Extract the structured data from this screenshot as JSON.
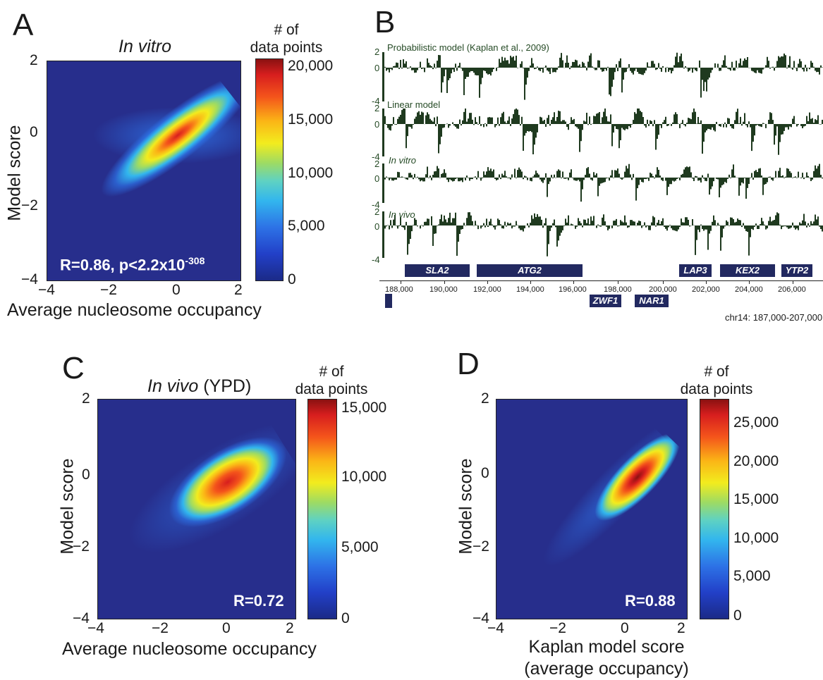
{
  "colors": {
    "heat_background": "#272e8c",
    "track_fill": "#1f3a1f",
    "gene_box": "#222960"
  },
  "panel_a": {
    "letter": "A",
    "title": "In vitro",
    "xlabel": "Average nucleosome occupancy",
    "ylabel": "Model score",
    "xticks": [
      "−4",
      "−2",
      "0",
      "2"
    ],
    "yticks": [
      "2",
      "0",
      "−2",
      "−4"
    ],
    "colorbar_title_1": "# of",
    "colorbar_title_2": "data points",
    "colorbar_ticks": [
      "20,000",
      "15,000",
      "10,000",
      "5,000",
      "0"
    ],
    "stat_main": "R=0.86, p<2.2x10",
    "stat_exp": "-308"
  },
  "panel_b": {
    "letter": "B",
    "tracks": [
      {
        "label": "Probabilistic model (Kaplan et al., 2009)",
        "italic": false,
        "top": "2",
        "mid": "0",
        "bottom": "-4"
      },
      {
        "label": "Linear model",
        "italic": false,
        "top": "2",
        "mid": "0",
        "bottom": "-4"
      },
      {
        "label": "In vitro",
        "italic": true,
        "top": "2",
        "mid": "0",
        "bottom": "-4"
      },
      {
        "label": "In vivo",
        "italic": true,
        "top": "2",
        "mid": "0",
        "bottom": "-4"
      }
    ],
    "genes_top": [
      "SLA2",
      "ATG2",
      "LAP3",
      "KEX2",
      "YTP2"
    ],
    "genes_bottom": [
      "ZWF1",
      "NAR1"
    ],
    "positions": [
      "188,000",
      "190,000",
      "192,000",
      "194,000",
      "196,000",
      "198,000",
      "200,000",
      "202,000",
      "204,000",
      "206,000"
    ],
    "region": "chr14: 187,000-207,000"
  },
  "panel_c": {
    "letter": "C",
    "title_italic": "In vivo",
    "title_plain": " (YPD)",
    "xlabel": "Average nucleosome occupancy",
    "ylabel": "Model score",
    "xticks": [
      "−4",
      "−2",
      "0",
      "2"
    ],
    "yticks": [
      "2",
      "0",
      "−2",
      "−4"
    ],
    "colorbar_title_1": "# of",
    "colorbar_title_2": "data points",
    "colorbar_ticks": [
      "15,000",
      "10,000",
      "5,000",
      "0"
    ],
    "stat": "R=0.72"
  },
  "panel_d": {
    "letter": "D",
    "xlabel_1": "Kaplan model score",
    "xlabel_2": "(average occupancy)",
    "ylabel": "Model score",
    "xticks": [
      "−4",
      "−2",
      "0",
      "2"
    ],
    "yticks": [
      "2",
      "0",
      "−2",
      "−4"
    ],
    "colorbar_title_1": "# of",
    "colorbar_title_2": "data points",
    "colorbar_ticks": [
      "25,000",
      "20,000",
      "15,000",
      "10,000",
      "5,000",
      "0"
    ],
    "stat": "R=0.88"
  },
  "chart_data": [
    {
      "type": "heatmap",
      "title": "In vitro",
      "xlabel": "Average nucleosome occupancy",
      "ylabel": "Model score",
      "xlim": [
        -4,
        2.2
      ],
      "ylim": [
        -4,
        2
      ],
      "colorbar_label": "# of data points",
      "colorbar_range": [
        0,
        21000
      ],
      "peak": {
        "x": 0.2,
        "y": 0.1,
        "count": 20000
      },
      "correlation": "R=0.86, p<2.2x10-308"
    },
    {
      "type": "line",
      "title": "",
      "region": "chr14: 187,000-207,000",
      "x_ticks": [
        188000,
        190000,
        192000,
        194000,
        196000,
        198000,
        200000,
        202000,
        204000,
        206000
      ],
      "ylim": [
        -4,
        2
      ],
      "series": [
        {
          "name": "Probabilistic model (Kaplan et al., 2009)"
        },
        {
          "name": "Linear model"
        },
        {
          "name": "In vitro"
        },
        {
          "name": "In vivo"
        }
      ],
      "genes": [
        "SLA2",
        "ATG2",
        "ZWF1",
        "NAR1",
        "LAP3",
        "KEX2",
        "YTP2"
      ]
    },
    {
      "type": "heatmap",
      "title": "In vivo (YPD)",
      "xlabel": "Average nucleosome occupancy",
      "ylabel": "Model score",
      "xlim": [
        -4,
        2.2
      ],
      "ylim": [
        -4,
        2
      ],
      "colorbar_label": "# of data points",
      "colorbar_range": [
        0,
        15500
      ],
      "peak": {
        "x": 0.0,
        "y": -0.1,
        "count": 15000
      },
      "correlation": "R=0.72"
    },
    {
      "type": "heatmap",
      "title": "",
      "xlabel": "Kaplan model score (average occupancy)",
      "ylabel": "Model score",
      "xlim": [
        -4,
        2.2
      ],
      "ylim": [
        -4,
        2
      ],
      "colorbar_label": "# of data points",
      "colorbar_range": [
        0,
        28000
      ],
      "peak": {
        "x": 0.5,
        "y": 0.2,
        "count": 27000
      },
      "correlation": "R=0.88"
    }
  ]
}
